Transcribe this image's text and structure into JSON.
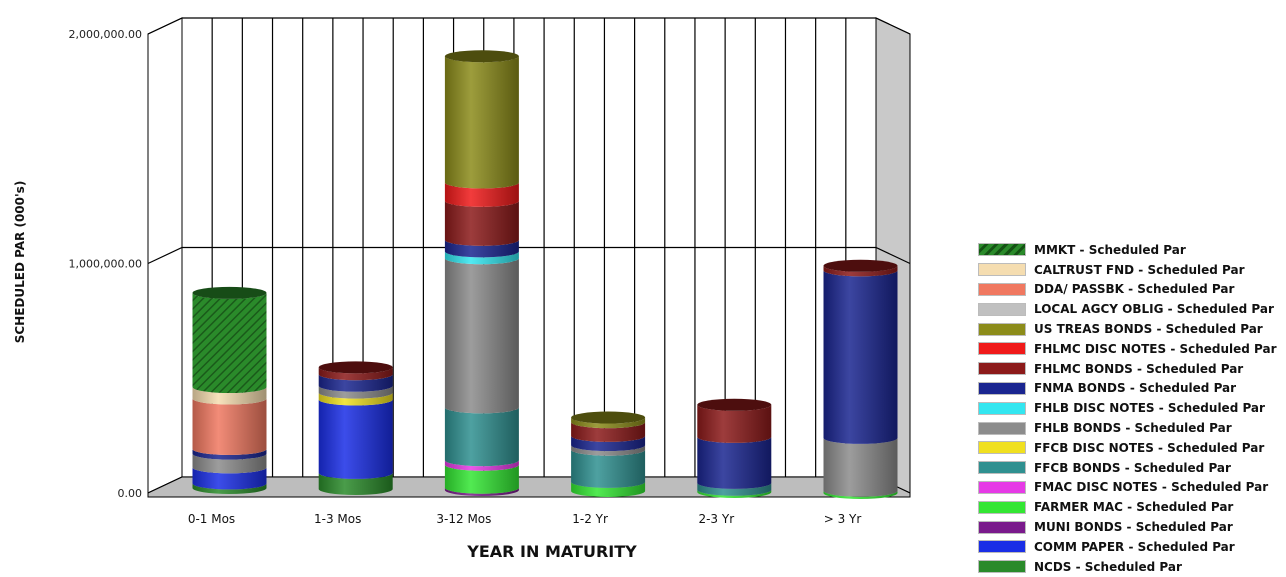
{
  "chart_data": {
    "type": "bar",
    "style": "stacked-3d-cylinder",
    "categories": [
      "0-1 Mos",
      "1-3 Mos",
      "3-12 Mos",
      "1-2 Yr",
      "2-3 Yr",
      "> 3 Yr"
    ],
    "ylabel": "SCHEDULED PAR (000's)",
    "xlabel": "YEAR IN MATURITY",
    "ylim": [
      0,
      2000000
    ],
    "yticks": [
      "0.00",
      "1,000,000.00",
      "2,000,000.00"
    ],
    "legend_position": "right",
    "series": [
      {
        "name": "NCDS - Scheduled Par",
        "color": "#2a8a2a",
        "values": [
          20000,
          70000,
          0,
          0,
          0,
          0
        ]
      },
      {
        "name": "COMM PAPER - Scheduled Par",
        "color": "#1a2ee6",
        "values": [
          70000,
          320000,
          0,
          0,
          0,
          0
        ]
      },
      {
        "name": "MUNI BONDS - Scheduled Par",
        "color": "#7a1a8c",
        "values": [
          0,
          0,
          10000,
          0,
          0,
          0
        ]
      },
      {
        "name": "FARMER MAC - Scheduled Par",
        "color": "#33e633",
        "values": [
          0,
          0,
          100000,
          40000,
          10000,
          10000
        ]
      },
      {
        "name": "FMAC DISC NOTES - Scheduled Par",
        "color": "#e63ae6",
        "values": [
          0,
          0,
          20000,
          0,
          0,
          0
        ]
      },
      {
        "name": "FFCB BONDS - Scheduled Par",
        "color": "#2f9090",
        "values": [
          0,
          0,
          230000,
          140000,
          30000,
          0
        ]
      },
      {
        "name": "FFCB DISC NOTES - Scheduled Par",
        "color": "#f0e020",
        "values": [
          0,
          30000,
          0,
          0,
          0,
          0
        ]
      },
      {
        "name": "FHLB BONDS - Scheduled Par",
        "color": "#8c8c8c",
        "values": [
          60000,
          30000,
          650000,
          20000,
          0,
          230000
        ]
      },
      {
        "name": "FHLB DISC NOTES - Scheduled Par",
        "color": "#33e6f0",
        "values": [
          0,
          0,
          30000,
          0,
          0,
          0
        ]
      },
      {
        "name": "FNMA BONDS - Scheduled Par",
        "color": "#1a2590",
        "values": [
          20000,
          50000,
          50000,
          40000,
          200000,
          730000
        ]
      },
      {
        "name": "FHLMC BONDS - Scheduled Par",
        "color": "#8c1a1a",
        "values": [
          0,
          30000,
          170000,
          60000,
          140000,
          20000
        ]
      },
      {
        "name": "FHLMC DISC NOTES - Scheduled Par",
        "color": "#f01a1a",
        "values": [
          0,
          0,
          80000,
          0,
          0,
          0
        ]
      },
      {
        "name": "US TREAS BONDS - Scheduled Par",
        "color": "#8c8c1a",
        "values": [
          0,
          0,
          550000,
          20000,
          0,
          0
        ]
      },
      {
        "name": "LOCAL AGCY OBLIG  - Scheduled Par",
        "color": "#c0c0c0",
        "values": [
          0,
          0,
          0,
          0,
          0,
          0
        ]
      },
      {
        "name": "DDA/ PASSBK - Scheduled Par",
        "color": "#f07860",
        "values": [
          220000,
          0,
          0,
          0,
          0,
          0
        ]
      },
      {
        "name": "CALTRUST FND - Scheduled Par",
        "color": "#f5ddb0",
        "values": [
          50000,
          0,
          0,
          0,
          0,
          0
        ]
      },
      {
        "name": "MMKT - Scheduled Par",
        "color": "#2a8a2a",
        "values": [
          410000,
          0,
          0,
          0,
          0,
          0
        ]
      }
    ]
  }
}
